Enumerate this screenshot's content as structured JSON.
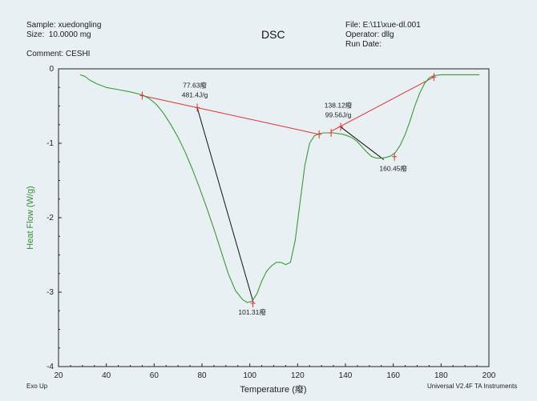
{
  "header": {
    "sample": "Sample: xuedongling",
    "size": "Size:  10.0000 mg",
    "comment": "Comment: CESHI",
    "file": "File: E:\\11\\xue-dl.001",
    "operator": "Operator: dllg",
    "run_date": "Run Date:"
  },
  "footer": {
    "exo": "Exo Up",
    "software": "Universal V2.4F TA Instruments"
  },
  "colors": {
    "curve": "#3a9a3a",
    "baseline": "#e03030",
    "tangent": "#111111",
    "axis": "#222222"
  },
  "chart_data": {
    "type": "line",
    "title": "DSC",
    "xlabel": "Temperature (癈)",
    "ylabel": "Heat Flow (W/g)",
    "xlim": [
      20,
      200
    ],
    "ylim": [
      -4,
      0
    ],
    "xticks": [
      20,
      40,
      60,
      80,
      100,
      120,
      140,
      160,
      180,
      200
    ],
    "yticks": [
      0,
      -1,
      -2,
      -3,
      -4
    ],
    "series": [
      {
        "x": [
          29,
          31,
          33,
          36,
          40,
          45,
          50,
          55,
          58,
          61,
          64,
          67,
          70,
          73,
          76,
          79,
          82,
          85,
          88,
          91,
          94,
          97,
          99,
          101,
          103,
          105,
          107,
          109,
          111,
          113,
          115,
          117,
          119,
          121,
          123,
          125,
          127,
          129,
          131,
          133,
          135,
          137,
          139,
          141,
          143,
          145,
          147,
          149,
          151,
          153,
          155,
          157,
          159,
          161,
          163,
          165,
          167,
          169,
          171,
          173,
          175,
          177,
          180,
          185,
          190,
          196
        ],
        "y": [
          -0.08,
          -0.1,
          -0.15,
          -0.2,
          -0.25,
          -0.28,
          -0.31,
          -0.35,
          -0.4,
          -0.48,
          -0.6,
          -0.75,
          -0.92,
          -1.12,
          -1.35,
          -1.6,
          -1.87,
          -2.15,
          -2.45,
          -2.75,
          -2.98,
          -3.1,
          -3.14,
          -3.12,
          -3.02,
          -2.85,
          -2.72,
          -2.65,
          -2.6,
          -2.6,
          -2.63,
          -2.6,
          -2.3,
          -1.8,
          -1.3,
          -1.0,
          -0.9,
          -0.87,
          -0.86,
          -0.86,
          -0.86,
          -0.87,
          -0.88,
          -0.9,
          -0.93,
          -0.98,
          -1.05,
          -1.12,
          -1.18,
          -1.2,
          -1.2,
          -1.19,
          -1.17,
          -1.12,
          -1.02,
          -0.88,
          -0.7,
          -0.5,
          -0.33,
          -0.2,
          -0.12,
          -0.09,
          -0.08,
          -0.08,
          -0.08,
          -0.08
        ]
      }
    ],
    "baselines": [
      {
        "x": [
          55,
          129
        ],
        "y": [
          -0.36,
          -0.88
        ]
      },
      {
        "x": [
          134,
          177
        ],
        "y": [
          -0.84,
          -0.11
        ]
      }
    ],
    "tangents": [
      {
        "x": [
          78,
          101.5
        ],
        "y": [
          -0.52,
          -3.14
        ]
      },
      {
        "x": [
          138,
          156
        ],
        "y": [
          -0.78,
          -1.22
        ]
      }
    ],
    "markers": [
      {
        "x": 55,
        "y": -0.36
      },
      {
        "x": 78,
        "y": -0.52
      },
      {
        "x": 101.3,
        "y": -3.15
      },
      {
        "x": 129,
        "y": -0.88
      },
      {
        "x": 134,
        "y": -0.86
      },
      {
        "x": 138,
        "y": -0.78
      },
      {
        "x": 160.5,
        "y": -1.18
      },
      {
        "x": 177,
        "y": -0.11
      }
    ],
    "annotations": [
      {
        "text": "77.63癈",
        "x": 77,
        "y": -0.25
      },
      {
        "text": "481.4J/g",
        "x": 77,
        "y": -0.38
      },
      {
        "text": "101.31癈",
        "x": 101,
        "y": -3.3
      },
      {
        "text": "138.12癈",
        "x": 137,
        "y": -0.52
      },
      {
        "text": "99.56J/g",
        "x": 137,
        "y": -0.65
      },
      {
        "text": "160.45癈",
        "x": 160,
        "y": -1.37
      }
    ]
  }
}
